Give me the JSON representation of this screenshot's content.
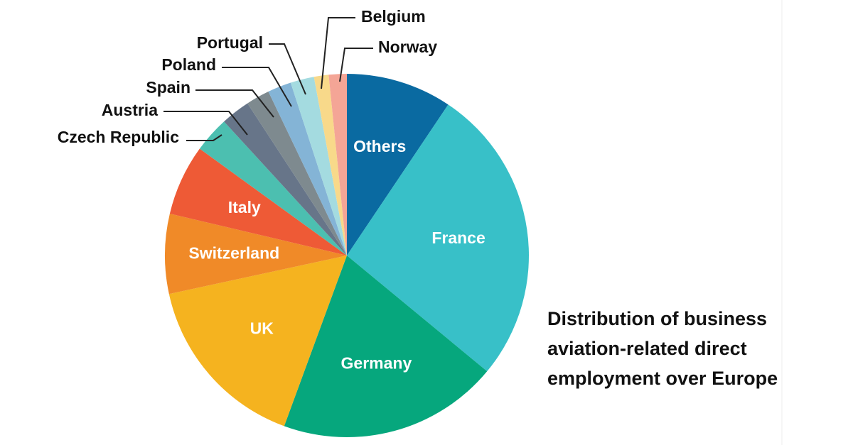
{
  "chart_data": {
    "type": "pie",
    "title": "Distribution of business aviation-related direct employment over Europe",
    "categories": [
      "Others",
      "France",
      "Germany",
      "UK",
      "Switzerland",
      "Italy",
      "Czech Republic",
      "Austria",
      "Spain",
      "Poland",
      "Portugal",
      "Belgium",
      "Norway"
    ],
    "values": [
      9.4,
      26.6,
      19.6,
      16,
      7.1,
      6.3,
      3.2,
      2.6,
      2.1,
      2.1,
      2.1,
      1.3,
      1.6
    ],
    "colors": [
      "#0a6aa1",
      "#38c0c8",
      "#06a77d",
      "#f5b31f",
      "#f08a28",
      "#ee5a36",
      "#4cbfb0",
      "#677589",
      "#7e8a8f",
      "#84b4d6",
      "#a4dbe0",
      "#f8d98a",
      "#f4a596"
    ]
  }
}
